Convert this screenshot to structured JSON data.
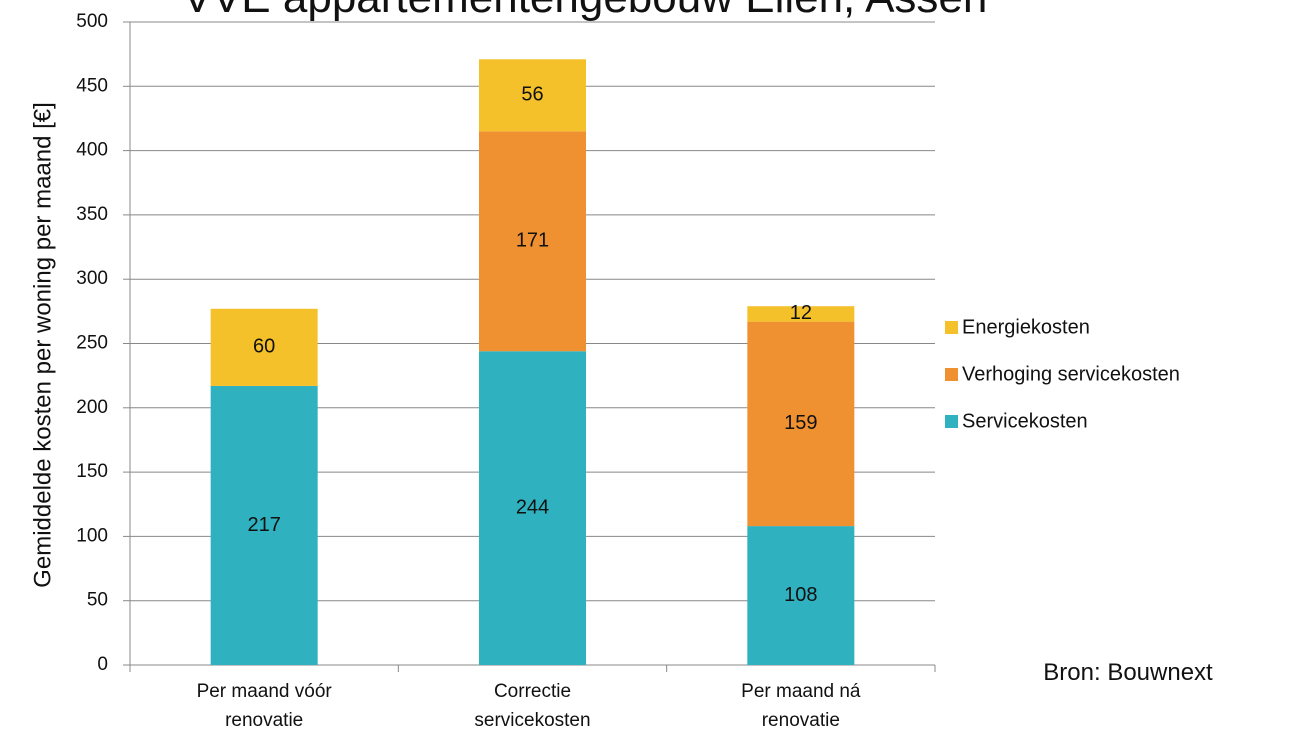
{
  "chart_data": {
    "type": "stacked_bar",
    "title": "VVE appartementengebouw Ellen, Assen",
    "y_label": "Gemiddelde kosten per woning per maand [€]",
    "annotation": "Bron: Bouwnext",
    "categories": [
      "Per maand vóór renovatie",
      "Correctie servicekosten",
      "Per maand ná renovatie"
    ],
    "series": [
      {
        "name": "Servicekosten",
        "color": "#2fb1bf",
        "values": [
          217,
          244,
          108
        ]
      },
      {
        "name": "Verhoging servicekosten",
        "color": "#f09131",
        "values": [
          null,
          171,
          159
        ]
      },
      {
        "name": "Energiekosten",
        "color": "#f5c12a",
        "values": [
          60,
          56,
          12
        ]
      }
    ],
    "ylim": [
      0,
      500
    ],
    "yticks": [
      0,
      50,
      100,
      150,
      200,
      250,
      300,
      350,
      400,
      450,
      500
    ],
    "grid": true,
    "legend": "right"
  }
}
